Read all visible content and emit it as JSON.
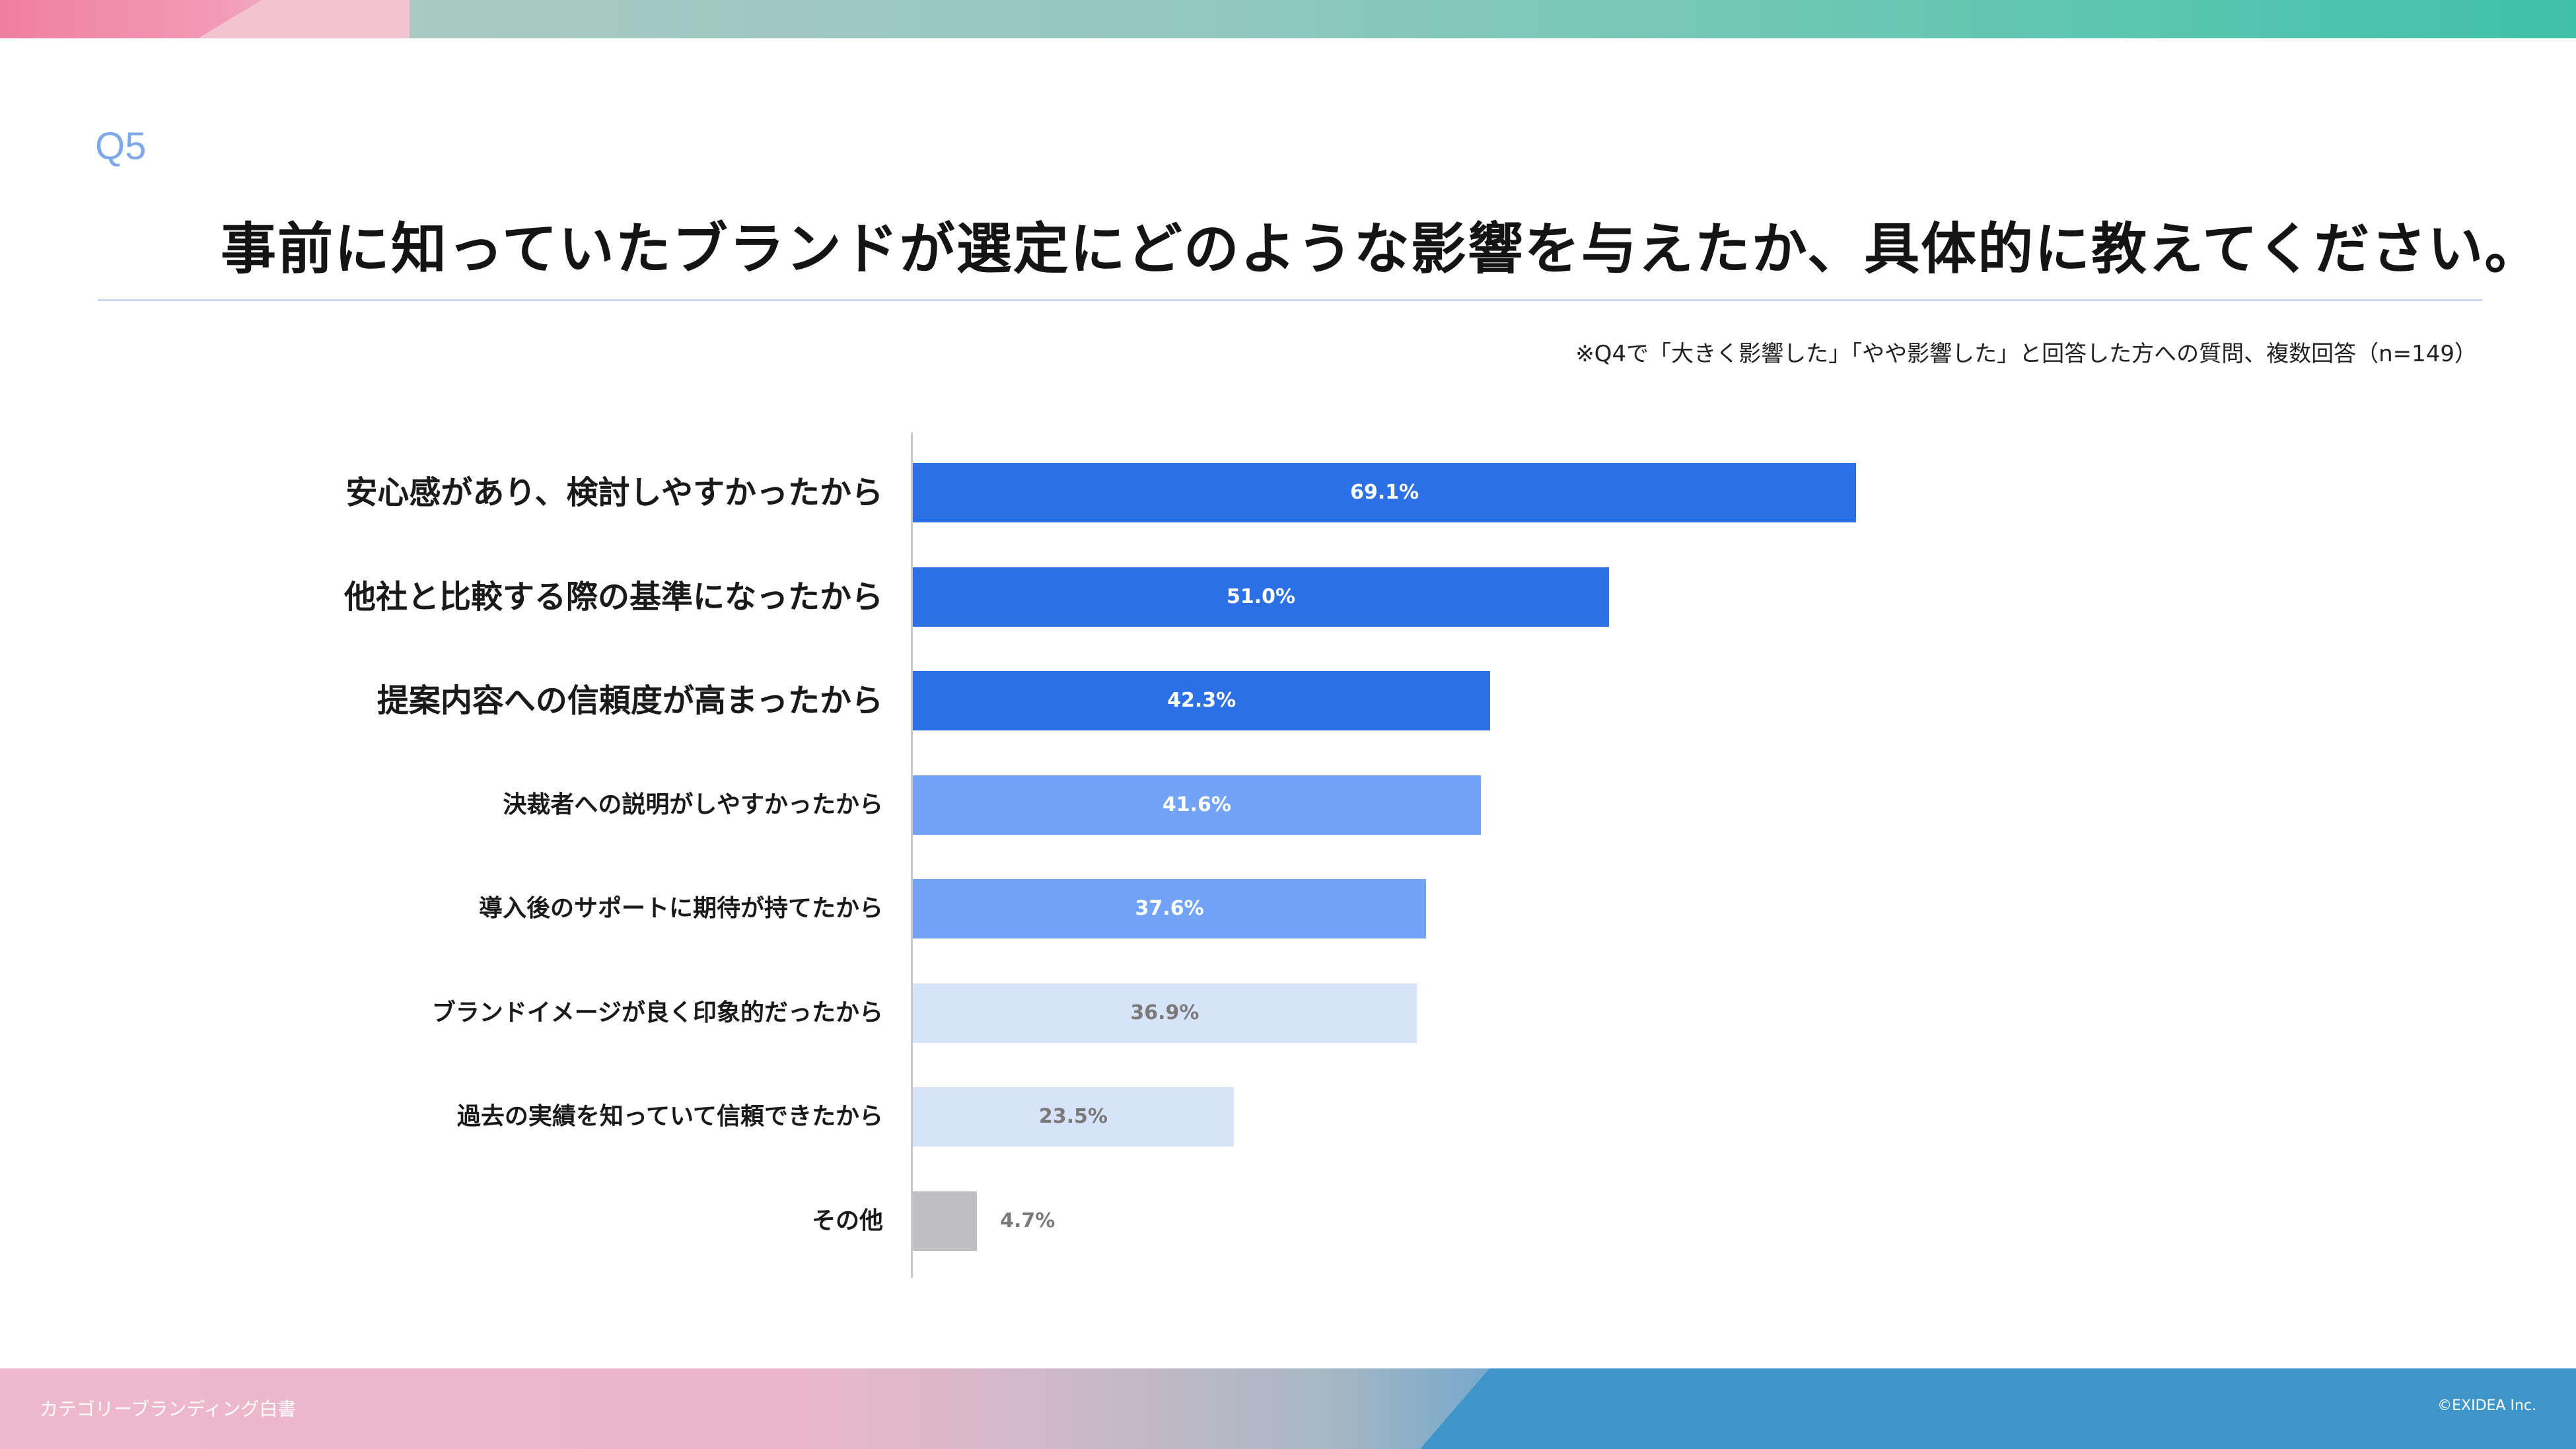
{
  "header": {
    "question_label": "Q5",
    "title": "事前に知っていたブランドが選定にどのような影響を与えたか、具体的に教えてください。",
    "note": "※Q4で「大きく影響した」「やや影響した」と回答した方への質問、複数回答（n=149）"
  },
  "footer": {
    "brand_text": "カテゴリーブランディング白書",
    "copyright": "©EXIDEA Inc."
  },
  "colors": {
    "dark_blue": "#2d6fe4",
    "mid_blue": "#73a3f6",
    "light_blue": "#d7e3f9",
    "gray": "#bfbfc2",
    "value_on_dark": "#ffffff",
    "value_on_light": "#7a7a7a",
    "accent": "#7fa8e8"
  },
  "chart_data": {
    "type": "bar",
    "orientation": "horizontal",
    "unit": "%",
    "xlim": [
      0,
      100
    ],
    "categories": [
      "安心感があり、検討しやすかったから",
      "他社と比較する際の基準になったから",
      "提案内容への信頼度が高まったから",
      "決裁者への説明がしやすかったから",
      "導入後のサポートに期待が持てたから",
      "ブランドイメージが良く印象的だったから",
      "過去の実績を知っていて信頼できたから",
      "その他"
    ],
    "values": [
      69.1,
      51.0,
      42.3,
      41.6,
      37.6,
      36.9,
      23.5,
      4.7
    ],
    "value_labels": [
      "69.1%",
      "51.0%",
      "42.3%",
      "41.6%",
      "37.6%",
      "36.9%",
      "23.5%",
      "4.7%"
    ],
    "bar_colors": [
      "dark_blue",
      "dark_blue",
      "dark_blue",
      "mid_blue",
      "mid_blue",
      "light_blue",
      "light_blue",
      "gray"
    ],
    "label_emphasis": [
      "large",
      "large",
      "large",
      "small",
      "small",
      "small",
      "small",
      "small"
    ]
  }
}
